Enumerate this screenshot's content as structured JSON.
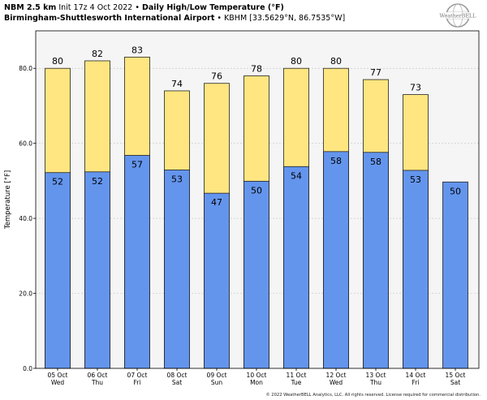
{
  "header": {
    "model": "NBM 2.5 km",
    "init": "Init 17z 4 Oct 2022",
    "sep": "•",
    "title": "Daily High/Low Temperature (°F)",
    "station": "Birmingham-Shuttlesworth International Airport",
    "coords": "KBHM [33.5629°N, 86.7535°W]"
  },
  "logo": {
    "text": "WeatherBELL"
  },
  "footer": {
    "text": "© 2022 WeatherBELL Analytics, LLC. All rights reserved. License required for commercial distribution."
  },
  "colors": {
    "high": "#ffe680",
    "low": "#6495ed",
    "plot_bg": "#f5f5f5",
    "edge": "#222222"
  },
  "chart_data": {
    "type": "bar",
    "ylabel": "Temperature [°F]",
    "ylim": [
      0,
      90
    ],
    "yticks": [
      0,
      20,
      40,
      60,
      80
    ],
    "ytick_labels": [
      "0.0",
      "20.0",
      "40.0",
      "60.0",
      "80.0"
    ],
    "grid": true,
    "categories": [
      {
        "date": "05 Oct",
        "day": "Wed"
      },
      {
        "date": "06 Oct",
        "day": "Thu"
      },
      {
        "date": "07 Oct",
        "day": "Fri"
      },
      {
        "date": "08 Oct",
        "day": "Sat"
      },
      {
        "date": "09 Oct",
        "day": "Sun"
      },
      {
        "date": "10 Oct",
        "day": "Mon"
      },
      {
        "date": "11 Oct",
        "day": "Tue"
      },
      {
        "date": "12 Oct",
        "day": "Wed"
      },
      {
        "date": "13 Oct",
        "day": "Thu"
      },
      {
        "date": "14 Oct",
        "day": "Fri"
      },
      {
        "date": "15 Oct",
        "day": "Sat"
      }
    ],
    "series": [
      {
        "key": "high",
        "values": [
          80,
          82,
          83,
          74,
          76,
          78,
          80,
          80,
          77,
          73,
          null
        ],
        "labels": [
          "80",
          "82",
          "83",
          "74",
          "76",
          "78",
          "80",
          "80",
          "77",
          "73",
          ""
        ]
      },
      {
        "key": "low",
        "values": [
          52.2,
          52.4,
          56.8,
          52.9,
          46.7,
          49.9,
          53.8,
          57.8,
          57.6,
          52.8,
          49.7
        ],
        "labels": [
          "52",
          "52",
          "57",
          "53",
          "47",
          "50",
          "54",
          "58",
          "58",
          "53",
          "50"
        ]
      }
    ]
  }
}
